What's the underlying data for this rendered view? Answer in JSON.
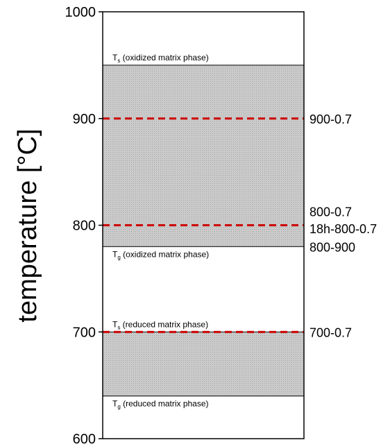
{
  "chart_data": {
    "type": "bar",
    "ylabel": "temperature [°C]",
    "ylim": [
      600,
      1000
    ],
    "yticks": [
      600,
      700,
      800,
      900,
      1000
    ],
    "grid": false,
    "bands": [
      {
        "from": 780,
        "to": 950,
        "color": "#c8c8c8"
      },
      {
        "from": 640,
        "to": 700,
        "color": "#c8c8c8"
      }
    ],
    "band_labels": [
      {
        "symbol": "T",
        "sub": "s",
        "text": " (oxidized matrix phase)",
        "value": 950
      },
      {
        "symbol": "T",
        "sub": "g",
        "text": " (oxidized matrix phase)",
        "value": 780
      },
      {
        "symbol": "T",
        "sub": "s",
        "text": " (reduced matrix phase)",
        "value": 700
      },
      {
        "symbol": "T",
        "sub": "g",
        "text": " (reduced matrix phase)",
        "value": 640
      }
    ],
    "lines": [
      {
        "value": 900,
        "style": "dashed",
        "color": "#cc0000"
      },
      {
        "value": 800,
        "style": "dashed",
        "color": "#cc0000"
      },
      {
        "value": 700,
        "style": "dashed",
        "color": "#cc0000"
      }
    ],
    "series_labels": [
      {
        "text": "900-0.7",
        "value": 900
      },
      {
        "text": "800-0.7",
        "value": 813
      },
      {
        "text": "18h-800-0.7",
        "value": 797
      },
      {
        "text": "800-900",
        "value": 780
      },
      {
        "text": "700-0.7",
        "value": 700
      }
    ]
  }
}
